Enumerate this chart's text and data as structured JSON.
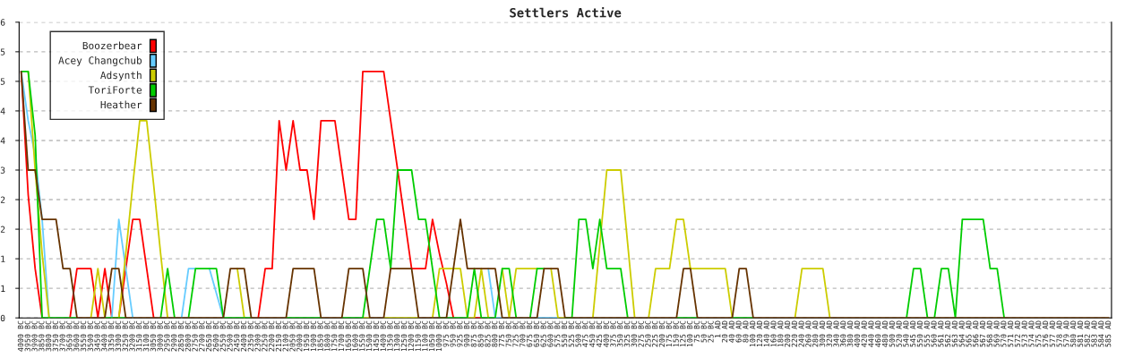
{
  "chart_data": {
    "type": "line",
    "title": "Settlers Active",
    "categories": [
      "4000 BC",
      "3950 BC",
      "3900 BC",
      "3850 BC",
      "3800 BC",
      "3750 BC",
      "3700 BC",
      "3650 BC",
      "3600 BC",
      "3550 BC",
      "3500 BC",
      "3450 BC",
      "3400 BC",
      "3350 BC",
      "3300 BC",
      "3250 BC",
      "3200 BC",
      "3150 BC",
      "3100 BC",
      "3050 BC",
      "3000 BC",
      "2950 BC",
      "2900 BC",
      "2850 BC",
      "2800 BC",
      "2750 BC",
      "2700 BC",
      "2650 BC",
      "2600 BC",
      "2550 BC",
      "2500 BC",
      "2450 BC",
      "2400 BC",
      "2350 BC",
      "2300 BC",
      "2250 BC",
      "2200 BC",
      "2150 BC",
      "2100 BC",
      "2050 BC",
      "2000 BC",
      "1950 BC",
      "1900 BC",
      "1850 BC",
      "1800 BC",
      "1750 BC",
      "1700 BC",
      "1650 BC",
      "1600 BC",
      "1550 BC",
      "1500 BC",
      "1450 BC",
      "1400 BC",
      "1350 BC",
      "1300 BC",
      "1250 BC",
      "1200 BC",
      "1150 BC",
      "1100 BC",
      "1050 BC",
      "1000 BC",
      "975 BC",
      "950 BC",
      "925 BC",
      "900 BC",
      "875 BC",
      "850 BC",
      "825 BC",
      "800 BC",
      "775 BC",
      "750 BC",
      "725 BC",
      "700 BC",
      "675 BC",
      "650 BC",
      "625 BC",
      "600 BC",
      "575 BC",
      "550 BC",
      "525 BC",
      "500 BC",
      "475 BC",
      "450 BC",
      "425 BC",
      "400 BC",
      "375 BC",
      "350 BC",
      "325 BC",
      "300 BC",
      "275 BC",
      "250 BC",
      "225 BC",
      "200 BC",
      "175 BC",
      "150 BC",
      "125 BC",
      "100 BC",
      "75 BC",
      "50 BC",
      "25 BC",
      "1 AD",
      "20 AD",
      "40 AD",
      "60 AD",
      "80 AD",
      "100 AD",
      "120 AD",
      "140 AD",
      "160 AD",
      "180 AD",
      "200 AD",
      "220 AD",
      "240 AD",
      "260 AD",
      "280 AD",
      "300 AD",
      "320 AD",
      "340 AD",
      "360 AD",
      "380 AD",
      "400 AD",
      "420 AD",
      "440 AD",
      "460 AD",
      "480 AD",
      "500 AD",
      "520 AD",
      "540 AD",
      "545 AD",
      "550 AD",
      "555 AD",
      "560 AD",
      "561 AD",
      "562 AD",
      "563 AD",
      "564 AD",
      "565 AD",
      "566 AD",
      "567 AD",
      "568 AD",
      "569 AD",
      "570 AD",
      "571 AD",
      "572 AD",
      "573 AD",
      "574 AD",
      "575 AD",
      "576 AD",
      "577 AD",
      "578 AD",
      "579 AD",
      "580 AD",
      "581 AD",
      "582 AD",
      "583 AD",
      "584 AD",
      "585 AD"
    ],
    "ylim": [
      0,
      6
    ],
    "yticks": [
      0,
      {
        "value": 0.6,
        "label": "1"
      },
      {
        "value": 1.2,
        "label": "1"
      },
      {
        "value": 1.8,
        "label": "2"
      },
      {
        "value": 2.4,
        "label": "2"
      },
      3,
      {
        "value": 3.6,
        "label": "4"
      },
      {
        "value": 4.2,
        "label": "4"
      },
      {
        "value": 4.8,
        "label": "5"
      },
      {
        "value": 5.4,
        "label": "5"
      },
      6
    ],
    "grid": "y",
    "legend": "top left",
    "series": [
      {
        "name": "Boozerbear",
        "color": "#ff0000",
        "values": [
          5,
          2.5,
          1,
          0,
          null,
          null,
          null,
          0,
          1,
          1,
          1,
          0,
          1,
          0,
          0,
          1,
          2,
          2,
          1,
          0,
          null,
          null,
          null,
          null,
          null,
          null,
          null,
          null,
          null,
          null,
          null,
          null,
          null,
          null,
          0,
          1,
          1,
          4,
          3,
          4,
          3,
          3,
          2,
          4,
          4,
          4,
          3,
          2,
          2,
          5,
          5,
          5,
          5,
          4,
          3,
          2,
          1,
          1,
          1,
          2,
          1.3,
          0.7,
          0,
          null,
          null,
          0,
          0,
          null,
          null,
          null,
          null,
          null,
          null,
          null,
          null,
          null,
          null,
          null,
          null,
          null,
          null,
          null,
          null,
          null,
          null,
          null,
          null,
          null,
          null,
          null,
          null,
          null,
          null,
          null,
          null,
          null,
          null,
          null,
          null,
          null,
          null,
          null,
          null,
          null,
          null,
          null,
          null,
          null,
          null,
          null,
          null,
          null,
          null,
          null,
          null,
          null,
          null,
          null,
          null,
          null,
          null,
          null,
          null,
          null,
          null,
          null,
          null,
          null,
          null,
          null,
          null,
          null,
          null,
          null,
          null,
          null,
          null,
          null,
          null,
          null,
          null,
          null,
          null,
          null,
          null,
          null,
          null,
          null,
          null,
          null,
          null,
          null,
          null,
          null,
          null,
          null,
          null
        ]
      },
      {
        "name": "Acey Changchub",
        "color": "#66ccff",
        "values": [
          5,
          4,
          3.3,
          2,
          0,
          null,
          null,
          null,
          null,
          null,
          null,
          null,
          null,
          0,
          2,
          1,
          0,
          null,
          null,
          null,
          null,
          null,
          null,
          0,
          1,
          1,
          null,
          1,
          0.5,
          0,
          null,
          null,
          null,
          null,
          null,
          null,
          null,
          null,
          null,
          null,
          null,
          null,
          null,
          null,
          null,
          null,
          null,
          null,
          null,
          null,
          null,
          null,
          null,
          null,
          null,
          null,
          null,
          null,
          null,
          null,
          null,
          null,
          null,
          null,
          null,
          null,
          null,
          1,
          0,
          0,
          null,
          null,
          null,
          null,
          0,
          0,
          0,
          0,
          null,
          null,
          null,
          null,
          null,
          null,
          null,
          null,
          null,
          null,
          null,
          null,
          null,
          null,
          null,
          null,
          null,
          null,
          null,
          null,
          null,
          null,
          null,
          null,
          null,
          null,
          null,
          null,
          null,
          null,
          null,
          null,
          null,
          null,
          null,
          null,
          null,
          null,
          null,
          null,
          null,
          null,
          null,
          null,
          null,
          null,
          null,
          null,
          null,
          null,
          null,
          null,
          null,
          null,
          null,
          null,
          null,
          null,
          null,
          null,
          null,
          null,
          null,
          null,
          null,
          null,
          null,
          null,
          null,
          null,
          null,
          null,
          null,
          null,
          null,
          null,
          null,
          null,
          null
        ]
      },
      {
        "name": "Adsynth",
        "color": "#cccc00",
        "values": [
          null,
          5,
          3,
          1.3,
          0,
          null,
          null,
          null,
          null,
          null,
          0,
          1,
          0,
          null,
          0,
          1.3,
          2.7,
          4,
          4,
          2.7,
          1.3,
          0,
          null,
          null,
          null,
          null,
          null,
          null,
          null,
          null,
          null,
          1,
          0,
          null,
          null,
          null,
          null,
          null,
          null,
          null,
          null,
          null,
          null,
          null,
          null,
          null,
          null,
          null,
          null,
          0,
          0,
          null,
          0,
          0,
          0,
          0,
          0,
          0,
          null,
          0,
          1,
          1,
          1,
          1,
          0,
          0,
          1,
          0,
          null,
          1,
          0,
          1,
          1,
          1,
          1,
          null,
          1,
          0,
          0,
          null,
          null,
          null,
          0,
          1.5,
          3,
          3,
          3,
          1.5,
          0,
          null,
          0,
          1,
          1,
          1,
          2,
          2,
          1,
          1,
          1,
          1,
          1,
          1,
          0,
          null,
          null,
          null,
          null,
          null,
          null,
          null,
          null,
          0,
          1,
          1,
          1,
          1,
          0,
          null,
          null,
          null,
          null,
          null,
          null,
          null,
          null,
          null,
          null,
          null,
          null,
          null,
          null,
          null,
          null,
          null,
          null,
          null,
          null,
          null,
          null,
          null,
          null,
          null,
          null,
          null,
          null,
          null,
          null,
          null,
          null,
          null,
          null,
          null,
          null,
          null,
          null,
          null,
          null
        ]
      },
      {
        "name": "ToriForte",
        "color": "#00cc00",
        "values": [
          5,
          5,
          3.7,
          0,
          0,
          0,
          0,
          0,
          0,
          null,
          null,
          null,
          0,
          0,
          0,
          0,
          null,
          null,
          null,
          null,
          0,
          1,
          0,
          null,
          0,
          1,
          1,
          1,
          1,
          0,
          0,
          0,
          0,
          0,
          null,
          null,
          null,
          null,
          0,
          0,
          0,
          0,
          0,
          0,
          null,
          null,
          0,
          0,
          0,
          0,
          1,
          2,
          2,
          1,
          3,
          3,
          3,
          2,
          2,
          1,
          0,
          0,
          0,
          0,
          0,
          1,
          0,
          0,
          0,
          1,
          1,
          0,
          null,
          0,
          1,
          1,
          null,
          null,
          0,
          0,
          2,
          2,
          1,
          2,
          1,
          1,
          1,
          0,
          null,
          null,
          null,
          null,
          null,
          null,
          0,
          0,
          0,
          0,
          null,
          null,
          null,
          null,
          0,
          0,
          0,
          0,
          null,
          null,
          null,
          null,
          null,
          null,
          null,
          null,
          null,
          null,
          null,
          null,
          null,
          null,
          null,
          null,
          null,
          null,
          null,
          null,
          null,
          0,
          1,
          1,
          0,
          0,
          1,
          1,
          0,
          2,
          2,
          2,
          2,
          1,
          1,
          0,
          null,
          null,
          null,
          null,
          null,
          null,
          null,
          null,
          null,
          null,
          null,
          null,
          null,
          null,
          null
        ]
      },
      {
        "name": "Heather",
        "color": "#663300",
        "values": [
          5,
          3,
          3,
          2,
          2,
          2,
          1,
          1,
          0,
          0,
          0,
          0,
          0,
          1,
          1,
          0,
          0,
          0,
          0,
          0,
          0,
          0,
          0,
          0,
          0,
          0,
          0,
          0,
          0,
          0,
          1,
          1,
          1,
          0,
          0,
          0,
          0,
          0,
          0,
          1,
          1,
          1,
          1,
          0,
          0,
          0,
          0,
          1,
          1,
          1,
          0,
          0,
          0,
          1,
          1,
          1,
          1,
          0,
          0,
          0,
          0,
          0,
          1,
          2,
          1,
          1,
          1,
          1,
          1,
          0,
          0,
          0,
          0,
          0,
          0,
          1,
          1,
          1,
          0,
          0,
          0,
          0,
          0,
          0,
          0,
          0,
          0,
          0,
          0,
          0,
          0,
          0,
          0,
          0,
          0,
          1,
          1,
          0,
          0,
          0,
          0,
          0,
          0,
          1,
          1,
          0,
          0,
          0,
          0,
          0,
          0,
          0,
          0,
          0,
          0,
          0,
          0,
          0,
          0,
          0,
          0,
          0,
          0,
          0,
          0,
          0,
          0,
          0,
          0,
          0,
          0,
          0,
          0,
          0,
          0,
          0,
          0,
          0,
          0,
          0,
          0,
          0,
          0,
          0,
          0,
          0,
          0,
          0,
          0,
          0,
          0,
          0,
          0,
          0,
          0,
          0,
          0
        ]
      }
    ]
  }
}
